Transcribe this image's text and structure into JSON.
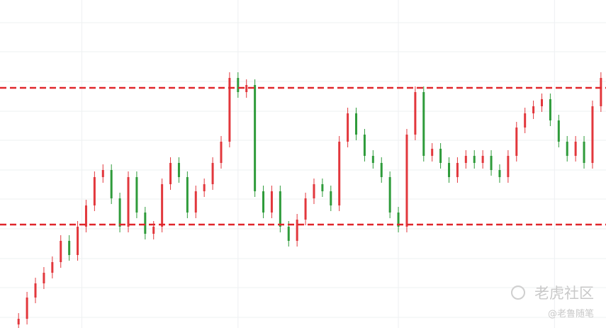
{
  "chart_data": {
    "type": "candlestick",
    "open": [
      5,
      13,
      43,
      63,
      78,
      93,
      123,
      103,
      143,
      173,
      213,
      223,
      183,
      143,
      213,
      163,
      133,
      143,
      203,
      233,
      213,
      163,
      193,
      203,
      233,
      263,
      353,
      333,
      343,
      193,
      163,
      193,
      143,
      123,
      153,
      183,
      203,
      193,
      173,
      263,
      303,
      273,
      243,
      233,
      213,
      163,
      143,
      273,
      333,
      243,
      253,
      233,
      213,
      233,
      243,
      233,
      243,
      223,
      213,
      243,
      283,
      303,
      313,
      323,
      293,
      263,
      243,
      263,
      233,
      313
    ],
    "high": [
      21,
      51,
      71,
      86,
      101,
      131,
      131,
      151,
      181,
      221,
      231,
      231,
      191,
      221,
      221,
      171,
      151,
      211,
      241,
      241,
      221,
      201,
      211,
      241,
      271,
      361,
      361,
      351,
      351,
      201,
      201,
      201,
      151,
      161,
      191,
      211,
      211,
      201,
      271,
      311,
      311,
      281,
      251,
      241,
      221,
      171,
      281,
      341,
      341,
      261,
      261,
      241,
      241,
      251,
      251,
      251,
      251,
      231,
      251,
      291,
      311,
      321,
      331,
      331,
      301,
      271,
      271,
      271,
      321,
      361
    ],
    "low": [
      0,
      5,
      35,
      55,
      70,
      85,
      95,
      95,
      135,
      165,
      205,
      175,
      135,
      135,
      155,
      125,
      125,
      135,
      195,
      205,
      155,
      155,
      185,
      195,
      225,
      255,
      325,
      325,
      185,
      155,
      155,
      135,
      115,
      115,
      145,
      175,
      185,
      165,
      165,
      255,
      265,
      235,
      225,
      205,
      155,
      135,
      135,
      265,
      235,
      235,
      225,
      205,
      205,
      225,
      225,
      225,
      215,
      205,
      205,
      235,
      275,
      295,
      305,
      285,
      255,
      235,
      235,
      225,
      225,
      305
    ],
    "close": [
      13,
      43,
      63,
      78,
      93,
      123,
      103,
      143,
      173,
      213,
      223,
      183,
      143,
      213,
      163,
      133,
      143,
      203,
      233,
      213,
      163,
      193,
      203,
      233,
      263,
      353,
      333,
      343,
      193,
      163,
      193,
      143,
      123,
      153,
      183,
      203,
      193,
      173,
      263,
      303,
      273,
      243,
      233,
      213,
      163,
      143,
      273,
      333,
      243,
      253,
      233,
      213,
      233,
      243,
      233,
      243,
      223,
      213,
      243,
      283,
      303,
      313,
      323,
      293,
      263,
      243,
      263,
      233,
      313,
      353
    ],
    "up_color": "#e2373c",
    "down_color": "#2e9b3a",
    "ylim": [
      0,
      463
    ],
    "yticks": [
      15,
      57,
      98,
      140,
      182,
      223,
      265,
      306,
      348,
      390,
      431
    ],
    "xlim": [
      -2.2,
      69.6
    ],
    "xticks": [
      7.5,
      26,
      45,
      63.5
    ],
    "grid": true,
    "hlines": [
      339,
      146
    ],
    "hline_color": "#e0262b",
    "watermark": "老虎社区",
    "watermark_sub": "@老鲁随笔"
  }
}
